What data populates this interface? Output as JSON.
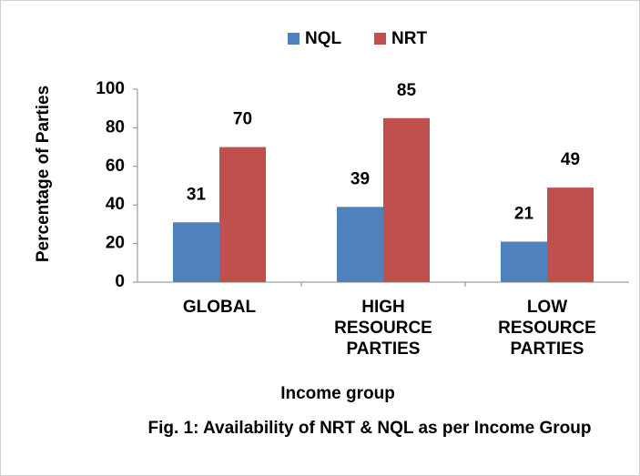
{
  "chart_data": {
    "type": "bar",
    "categories": [
      "GLOBAL",
      "HIGH RESOURCE PARTIES",
      "LOW RESOURCE PARTIES"
    ],
    "series": [
      {
        "name": "NQL",
        "color": "#4f81bd",
        "values": [
          31,
          39,
          21
        ]
      },
      {
        "name": "NRT",
        "color": "#c0504d",
        "values": [
          70,
          85,
          49
        ]
      }
    ],
    "ylim": [
      0,
      100
    ],
    "yticks": [
      0,
      20,
      40,
      60,
      80,
      100
    ],
    "y_label": "Percentage of Parties",
    "x_label": "Income group",
    "caption": "Fig. 1: Availability of NRT & NQL as per Income Group",
    "legend": "top",
    "grid": false
  }
}
